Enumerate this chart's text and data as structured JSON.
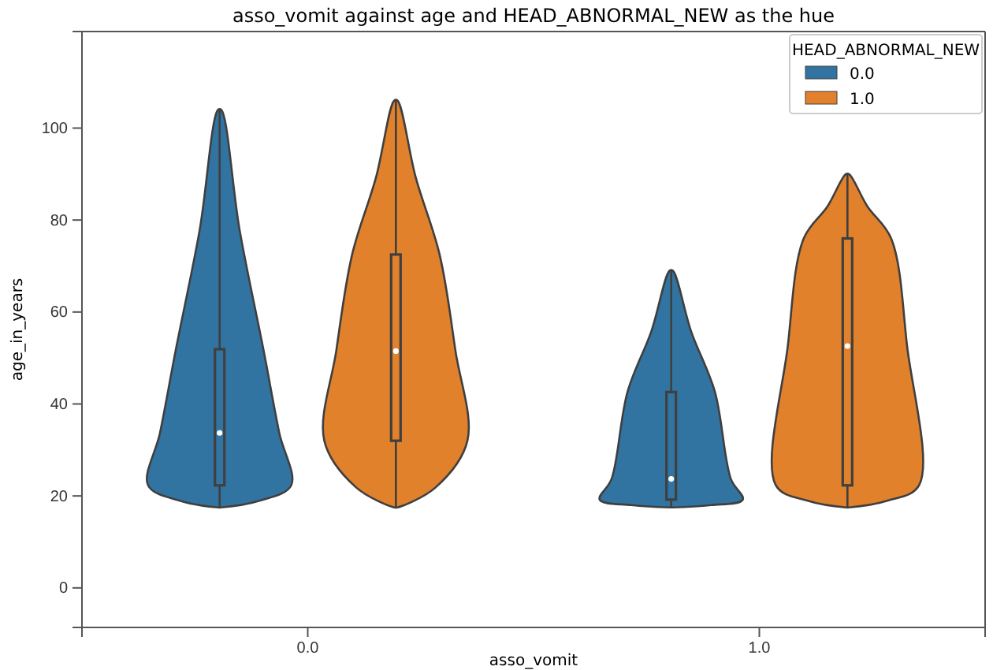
{
  "chart_data": {
    "type": "box",
    "title": "asso_vomit against age and HEAD_ABNORMAL_NEW as the hue",
    "xlabel": "asso_vomit",
    "ylabel": "age_in_years",
    "legend_title": "HEAD_ABNORMAL_NEW",
    "categories": [
      "0.0",
      "1.0"
    ],
    "ylim": [
      -8.6,
      121
    ],
    "yticks": [
      0,
      20,
      40,
      60,
      80,
      100
    ],
    "legend": "top right",
    "grid": false,
    "series": [
      {
        "name": "0.0",
        "color": "#3274a1",
        "boxes": [
          {
            "low": 17.5,
            "q1": 22.3,
            "median": 33.7,
            "q3": 51.9,
            "high": 104
          },
          {
            "low": 17.5,
            "q1": 19.2,
            "median": 23.7,
            "q3": 42.6,
            "high": 69
          }
        ]
      },
      {
        "name": "1.0",
        "color": "#e1812c",
        "boxes": [
          {
            "low": 17.5,
            "q1": 32,
            "median": 51.5,
            "q3": 72.5,
            "high": 106
          },
          {
            "low": 17.5,
            "q1": 22.3,
            "median": 52.6,
            "q3": 76,
            "high": 90
          }
        ]
      }
    ]
  }
}
